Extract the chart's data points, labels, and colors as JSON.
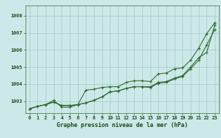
{
  "title": "Graphe pression niveau de la mer (hPa)",
  "background_color": "#cde8e8",
  "grid_color": "#a8cccc",
  "line_color": "#2d6a2d",
  "xlim": [
    -0.5,
    23.5
  ],
  "ylim": [
    1002.3,
    1008.6
  ],
  "yticks": [
    1003,
    1004,
    1005,
    1006,
    1007,
    1008
  ],
  "xtick_labels": [
    "0",
    "1",
    "2",
    "3",
    "4",
    "5",
    "6",
    "7",
    "8",
    "9",
    "10",
    "11",
    "12",
    "13",
    "14",
    "15",
    "16",
    "17",
    "18",
    "19",
    "20",
    "21",
    "22",
    "23"
  ],
  "series": [
    [
      1002.55,
      1002.7,
      1002.8,
      1002.95,
      1002.75,
      1002.75,
      1002.8,
      1002.9,
      1003.05,
      1003.25,
      1003.55,
      1003.6,
      1003.75,
      1003.85,
      1003.85,
      1003.85,
      1004.1,
      1004.15,
      1004.35,
      1004.5,
      1005.0,
      1005.55,
      1005.85,
      1007.45
    ],
    [
      1002.55,
      1002.7,
      1002.8,
      1002.95,
      1002.75,
      1002.75,
      1002.8,
      1002.9,
      1003.05,
      1003.25,
      1003.55,
      1003.6,
      1003.75,
      1003.85,
      1003.85,
      1003.8,
      1004.05,
      1004.1,
      1004.3,
      1004.45,
      1004.9,
      1005.4,
      1006.3,
      1007.2
    ],
    [
      1002.55,
      1002.7,
      1002.8,
      1003.05,
      1002.65,
      1002.65,
      1002.8,
      1003.65,
      1003.7,
      1003.8,
      1003.85,
      1003.85,
      1004.1,
      1004.2,
      1004.2,
      1004.15,
      1004.6,
      1004.65,
      1004.9,
      1004.95,
      1005.4,
      1006.1,
      1006.95,
      1007.6
    ]
  ]
}
